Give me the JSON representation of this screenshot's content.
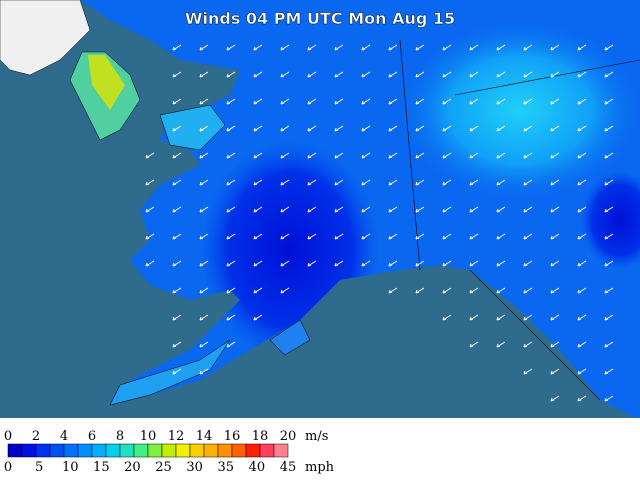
{
  "header": {
    "title": "Winds 04 PM UTC Mon Aug 15"
  },
  "legend": {
    "colors": [
      "#0000c8",
      "#0010e0",
      "#0030f0",
      "#0050f8",
      "#0070ff",
      "#0090ff",
      "#00b0ff",
      "#00d0f0",
      "#20e0c0",
      "#40f080",
      "#80f040",
      "#c0f000",
      "#f0f000",
      "#f8d000",
      "#ffb000",
      "#ff9000",
      "#ff6000",
      "#ff2000",
      "#ff4060",
      "#ff8090"
    ],
    "ms_ticks": [
      "0",
      "2",
      "4",
      "6",
      "8",
      "10",
      "12",
      "14",
      "16",
      "18",
      "20"
    ],
    "ms_unit": "m/s",
    "mph_ticks": [
      "0",
      "5",
      "10",
      "15",
      "20",
      "25",
      "30",
      "35",
      "40",
      "45"
    ],
    "mph_unit": "mph"
  }
}
